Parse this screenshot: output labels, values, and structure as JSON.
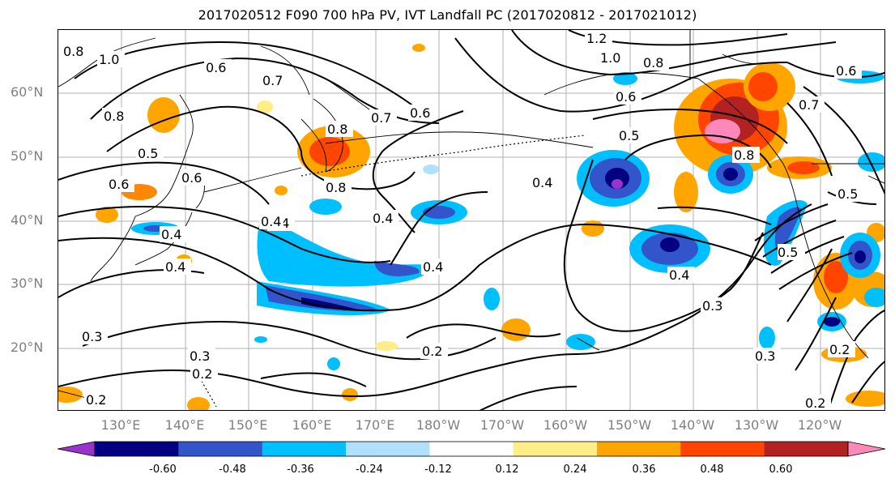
{
  "title": "2017020512 F090 700 hPa PV, IVT Landfall PC (2017020812 - 2017021012)",
  "lat_labels": [
    "60°N",
    "50°N",
    "40°N",
    "30°N",
    "20°N"
  ],
  "lon_labels": [
    "130°E",
    "140°E",
    "150°E",
    "160°E",
    "170°E",
    "180°W",
    "170°W",
    "160°W",
    "150°W",
    "140°W",
    "130°W",
    "120°W"
  ],
  "colorbar": {
    "colors": [
      "#9933cc",
      "#000080",
      "#3355cc",
      "#00bfff",
      "#b0e0ff",
      "#ffffff",
      "#ffee88",
      "#ffa500",
      "#ff4500",
      "#b22222",
      "#ff88bb"
    ],
    "tick_labels": [
      "-0.60",
      "-0.48",
      "-0.36",
      "-0.24",
      "-0.12",
      "0.12",
      "0.24",
      "0.36",
      "0.48",
      "0.60"
    ]
  },
  "contour_labels": [
    "1.2",
    "1.0",
    "0.8",
    "0.8",
    "0.7",
    "0.6",
    "0.5",
    "0.6",
    "0.7",
    "0.5",
    "0.8",
    "0.4",
    "0.7",
    "0.6",
    "0.8",
    "0.4",
    "0.4",
    "0.4",
    "0.5",
    "0.4",
    "0.3",
    "0.4",
    "0.2",
    "0.3",
    "0.3",
    "0.2",
    "0.2",
    "0.3",
    "0.2",
    "1.0",
    "0.8",
    "0.5",
    "0.8",
    "0.6",
    "0.4",
    "0.6",
    "0.6",
    "0.4",
    "0.2"
  ]
}
